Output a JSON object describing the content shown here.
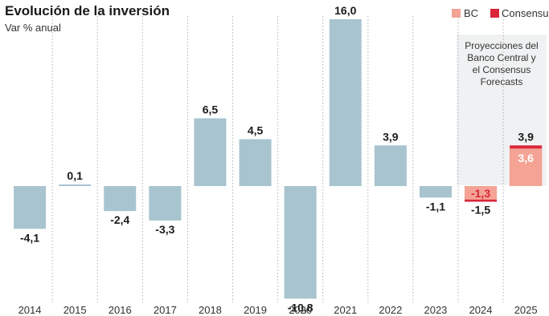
{
  "chart_data": {
    "type": "bar",
    "title": "Evolución de la inversión",
    "subtitle": "Var % anual",
    "categories": [
      "2014",
      "2015",
      "2016",
      "2017",
      "2018",
      "2019",
      "2020",
      "2021",
      "2022",
      "2023",
      "2024",
      "2025"
    ],
    "series": [
      {
        "name": "",
        "values": [
          -4.1,
          0.1,
          -2.4,
          -3.3,
          6.5,
          4.5,
          -10.8,
          16.0,
          3.9,
          -1.1,
          null,
          null
        ],
        "labels": [
          "-4,1",
          "0,1",
          "-2,4",
          "-3,3",
          "6,5",
          "4,5",
          "-10,8",
          "16,0",
          "3,9",
          "-1,1",
          "",
          ""
        ]
      },
      {
        "name": "BC",
        "values": [
          null,
          null,
          null,
          null,
          null,
          null,
          null,
          null,
          null,
          null,
          -1.3,
          3.6
        ],
        "labels": [
          "",
          "",
          "",
          "",
          "",
          "",
          "",
          "",
          "",
          "",
          "-1,3",
          "3,6"
        ]
      },
      {
        "name": "Consensus",
        "values": [
          null,
          null,
          null,
          null,
          null,
          null,
          null,
          null,
          null,
          null,
          -1.5,
          3.9
        ],
        "labels": [
          "",
          "",
          "",
          "",
          "",
          "",
          "",
          "",
          "",
          "",
          "-1,5",
          "3,9"
        ]
      }
    ],
    "ylim": [
      -11,
      16
    ],
    "annotation": "Proyecciones del Banco Central y el Consensus Forecasts",
    "annotation_lines": [
      "Proyecciones del",
      "Banco Central y",
      "el Consensus",
      "Forecasts"
    ],
    "legend_position": "top-right",
    "colors": {
      "historic": "#a8c4cf",
      "bc": "#f4a394",
      "consensus": "#d9263a",
      "projection_bg": "#f0f1f2"
    }
  }
}
